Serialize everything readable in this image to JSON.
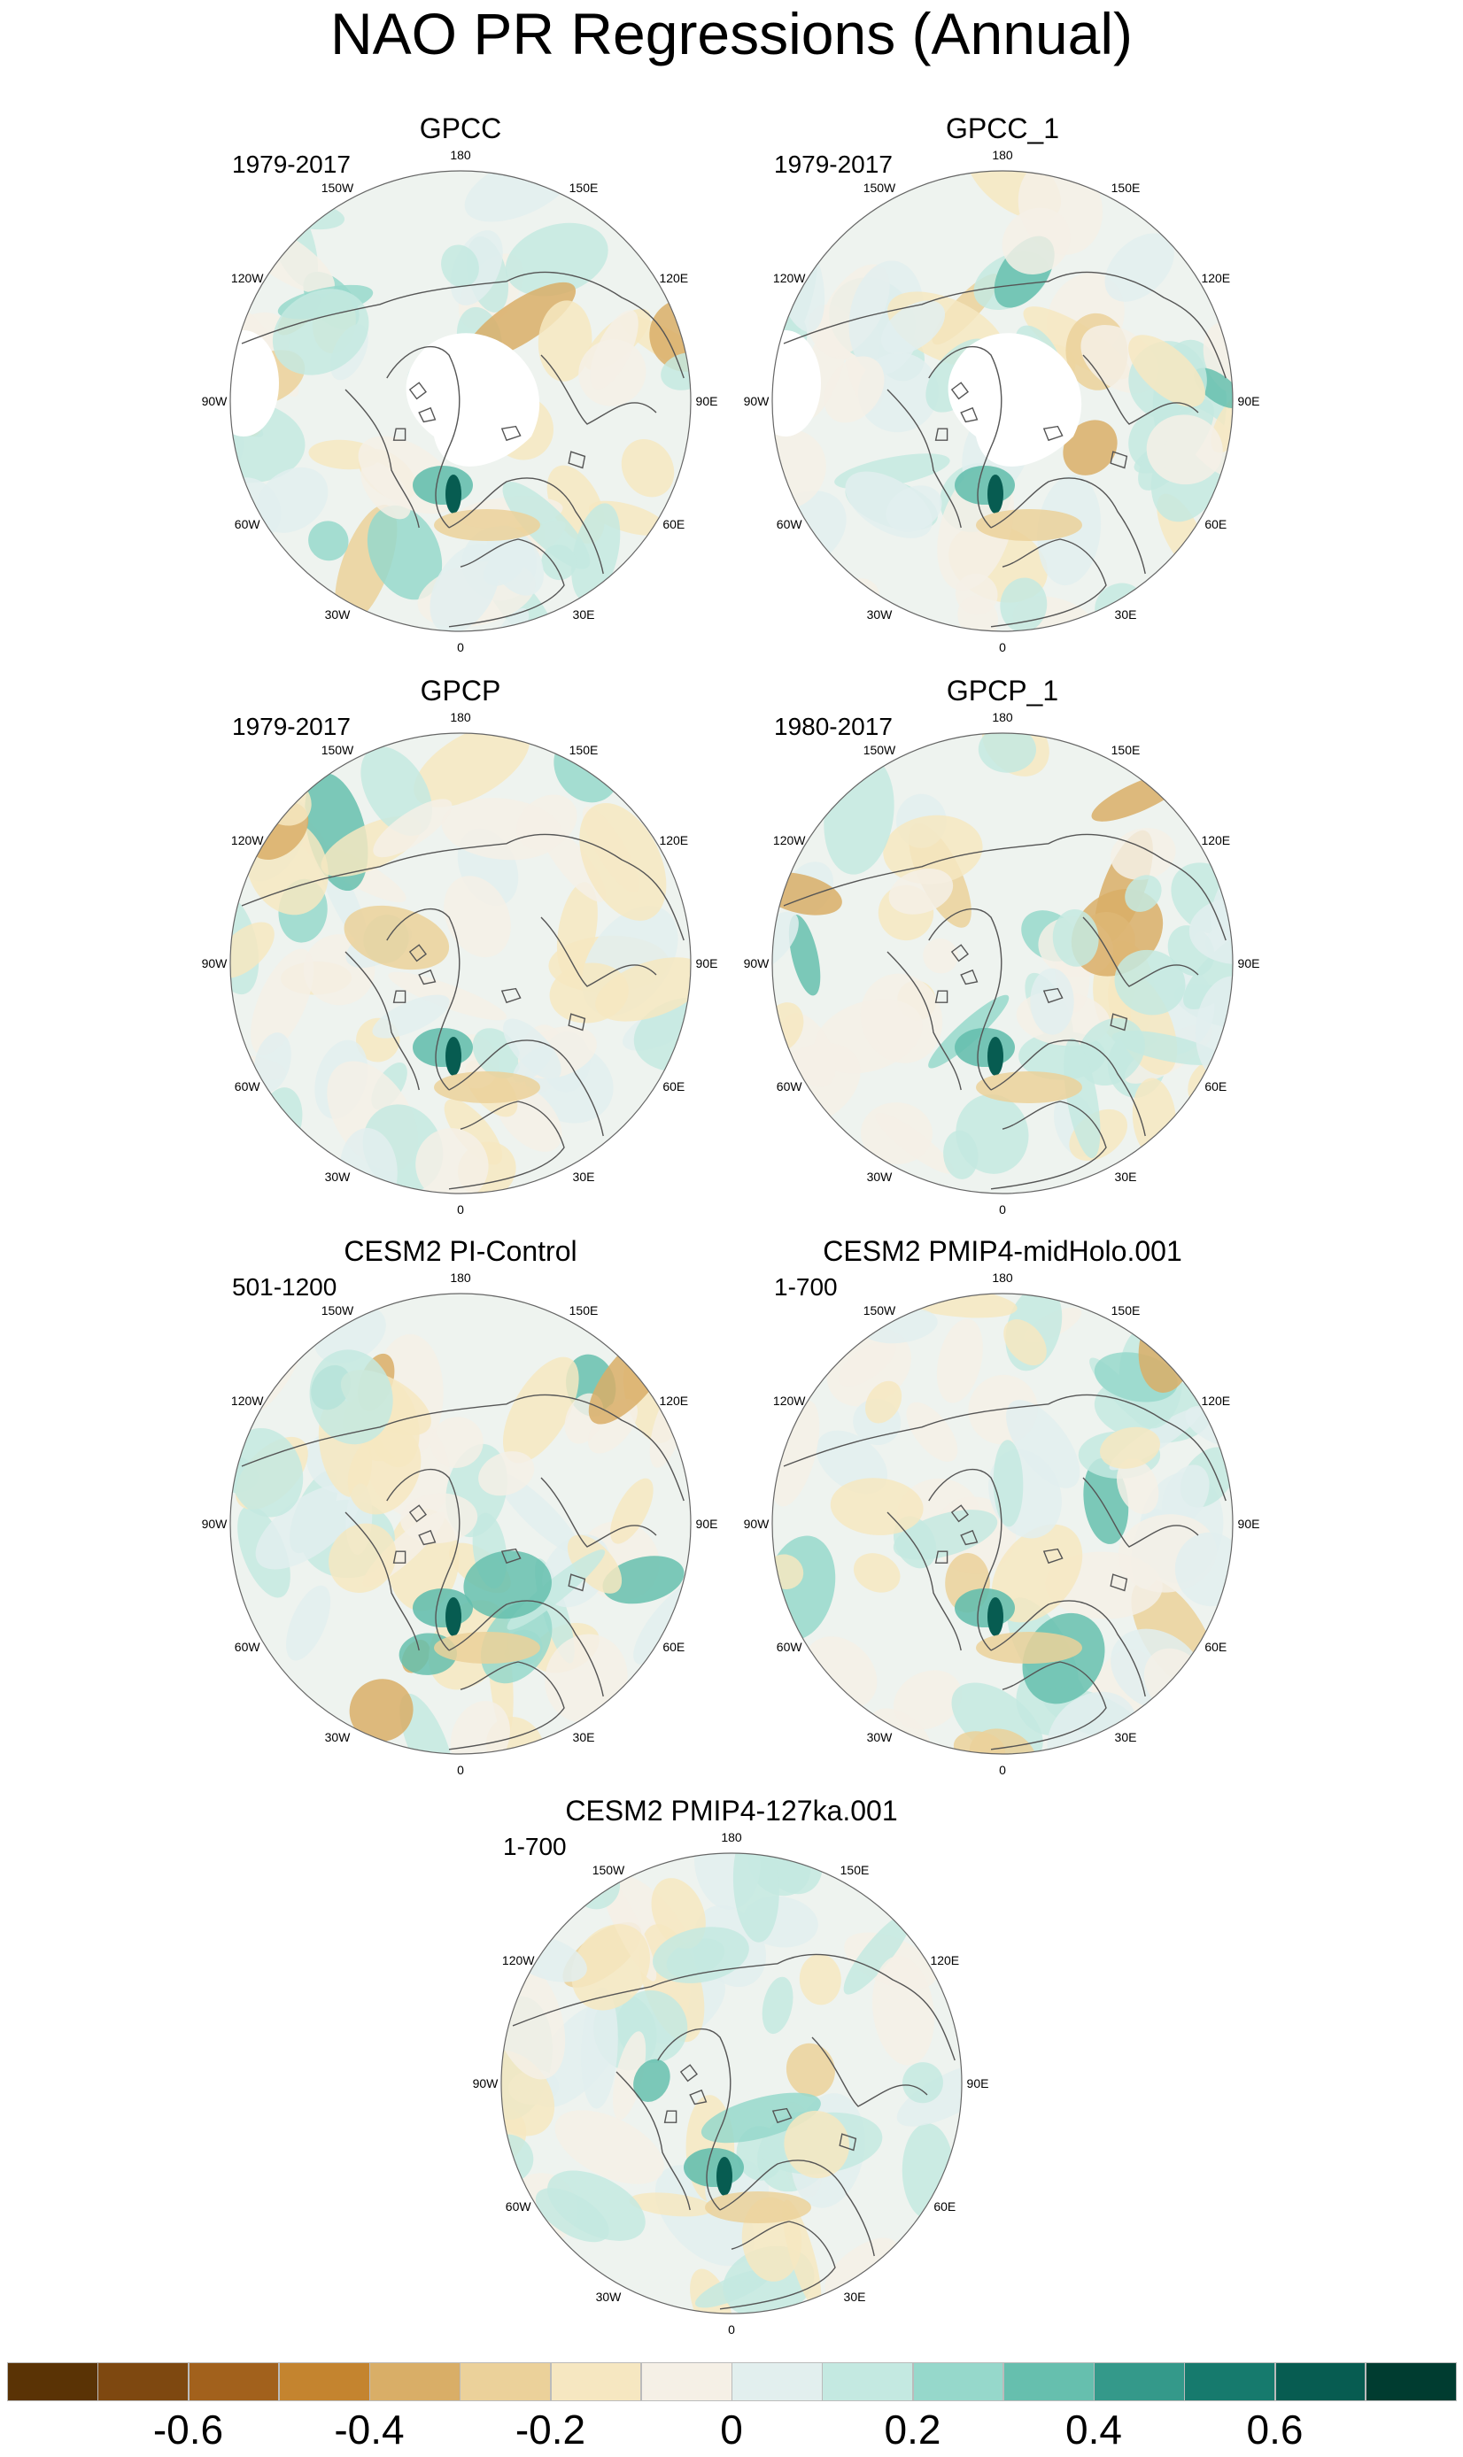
{
  "title": "NAO PR Regressions (Annual)",
  "longitude_labels": [
    "180",
    "150E",
    "120E",
    "90E",
    "60E",
    "30E",
    "0",
    "30W",
    "60W",
    "90W",
    "120W",
    "150W"
  ],
  "panels": [
    {
      "title": "GPCC",
      "period": "1979-2017",
      "masked_arctic": true
    },
    {
      "title": "GPCC_1",
      "period": "1979-2017",
      "masked_arctic": true
    },
    {
      "title": "GPCP",
      "period": "1979-2017",
      "masked_arctic": false
    },
    {
      "title": "GPCP_1",
      "period": "1980-2017",
      "masked_arctic": false
    },
    {
      "title": "CESM2 PI-Control",
      "period": "501-1200",
      "masked_arctic": false
    },
    {
      "title": "CESM2 PMIP4-midHolo.001",
      "period": "1-700",
      "masked_arctic": false
    },
    {
      "title": "CESM2 PMIP4-127ka.001",
      "period": "1-700",
      "masked_arctic": false
    }
  ],
  "colorbar": {
    "colors": [
      "#5a3305",
      "#7e4810",
      "#a2611c",
      "#c4842f",
      "#d9ae67",
      "#ebd19a",
      "#f6e7c1",
      "#f5f0e6",
      "#e2efee",
      "#c4e9e1",
      "#96d8cb",
      "#66bfae",
      "#34998a",
      "#167a6d",
      "#075c51",
      "#003c30"
    ],
    "labels": [
      {
        "text": "-0.6",
        "boundary": 2
      },
      {
        "text": "-0.4",
        "boundary": 4
      },
      {
        "text": "-0.2",
        "boundary": 6
      },
      {
        "text": "0",
        "boundary": 8
      },
      {
        "text": "0.2",
        "boundary": 10
      },
      {
        "text": "0.4",
        "boundary": 12
      },
      {
        "text": "0.6",
        "boundary": 14
      }
    ]
  }
}
